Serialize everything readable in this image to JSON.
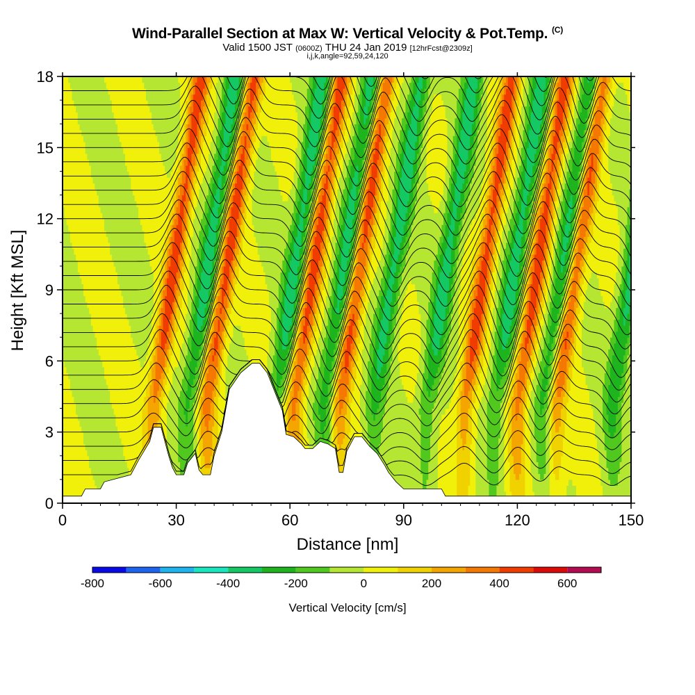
{
  "header": {
    "title": "Wind-Parallel Section at Max W: Vertical Velocity & Pot.Temp.",
    "title_mark": "(C)",
    "valid_prefix": "Valid 1500 JST",
    "valid_utc": "(0600Z)",
    "valid_date": "THU 24 Jan 2019",
    "forecast": "[12hrFcst@2309z]",
    "params": "i,j,k,angle=92,59,24,120"
  },
  "chart_data": {
    "type": "heatmap",
    "title": "Wind-Parallel Section at Max W: Vertical Velocity & Pot.Temp.",
    "xlabel": "Distance [nm]",
    "ylabel": "Height [Kft MSL]",
    "xlim": [
      0,
      150
    ],
    "ylim": [
      0,
      18
    ],
    "x_ticks": [
      "0",
      "30",
      "60",
      "90",
      "120",
      "150"
    ],
    "y_ticks": [
      "0",
      "3",
      "6",
      "9",
      "12",
      "15",
      "18"
    ],
    "field": "Vertical Velocity [cm/s]",
    "contour_field": "Potential Temperature",
    "updraft_centers_nm": [
      24,
      38,
      61,
      73,
      106,
      120,
      130
    ],
    "downdraft_centers_nm": [
      33,
      56,
      69,
      82,
      96,
      114,
      127,
      145
    ],
    "max_updraft_cms": 450,
    "max_downdraft_cms": -420,
    "terrain_profile": [
      [
        0,
        0.3
      ],
      [
        5,
        0.3
      ],
      [
        6,
        0.6
      ],
      [
        10,
        0.6
      ],
      [
        11,
        0.9
      ],
      [
        18,
        1.2
      ],
      [
        20,
        1.8
      ],
      [
        23,
        2.6
      ],
      [
        24,
        3.2
      ],
      [
        26,
        3.2
      ],
      [
        27,
        2.6
      ],
      [
        28,
        2.0
      ],
      [
        29,
        1.5
      ],
      [
        30,
        1.2
      ],
      [
        32,
        1.2
      ],
      [
        33,
        1.7
      ],
      [
        35,
        2.1
      ],
      [
        36,
        1.4
      ],
      [
        37,
        1.2
      ],
      [
        39,
        1.2
      ],
      [
        40,
        2.0
      ],
      [
        42,
        3.0
      ],
      [
        44,
        4.8
      ],
      [
        47,
        5.5
      ],
      [
        50,
        5.9
      ],
      [
        52,
        5.9
      ],
      [
        54,
        5.5
      ],
      [
        56,
        4.7
      ],
      [
        58,
        3.9
      ],
      [
        59,
        2.9
      ],
      [
        61,
        2.8
      ],
      [
        63,
        2.5
      ],
      [
        64,
        2.3
      ],
      [
        66,
        2.3
      ],
      [
        68,
        2.6
      ],
      [
        70,
        2.5
      ],
      [
        72,
        2.3
      ],
      [
        73,
        1.3
      ],
      [
        74,
        1.3
      ],
      [
        75,
        2.2
      ],
      [
        77,
        2.8
      ],
      [
        79,
        2.8
      ],
      [
        81,
        2.4
      ],
      [
        83,
        2.1
      ],
      [
        85,
        1.6
      ],
      [
        86,
        1.3
      ],
      [
        88,
        0.9
      ],
      [
        90,
        0.6
      ],
      [
        100,
        0.6
      ],
      [
        101,
        0.3
      ],
      [
        150,
        0.3
      ]
    ],
    "colorbar": {
      "title": "Vertical Velocity [cm/s]",
      "ticks": [
        "-800",
        "-600",
        "-400",
        "-200",
        "0",
        "200",
        "400",
        "600"
      ],
      "bins": [
        -800,
        -700,
        -600,
        -500,
        -400,
        -300,
        -200,
        -100,
        0,
        100,
        200,
        300,
        400,
        500,
        600,
        700
      ],
      "colors": [
        "#0a0ae6",
        "#1e64f0",
        "#1eb4f0",
        "#19e6be",
        "#14c864",
        "#1eb41e",
        "#50c81e",
        "#b4e632",
        "#f0f00a",
        "#f0d200",
        "#f5a500",
        "#f57800",
        "#f03c00",
        "#dc0a0a",
        "#b40a50",
        "#780a82"
      ]
    }
  }
}
